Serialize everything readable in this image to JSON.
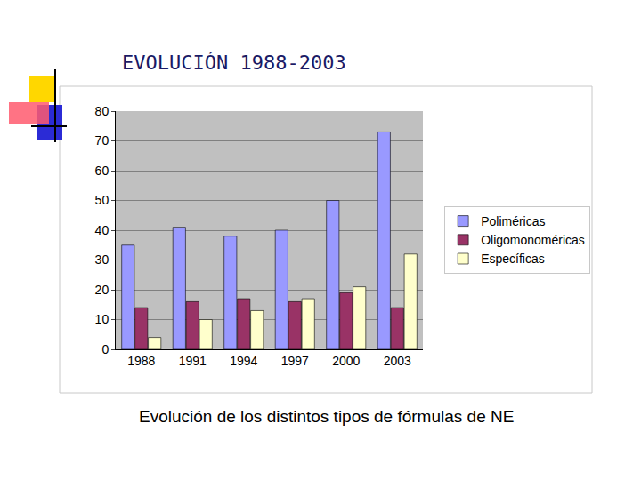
{
  "chart_data": {
    "type": "bar",
    "title": "EVOLUCIÓN 1988-2003",
    "annotations": [
      "Evolución de los distintos tipos de fórmulas de NE"
    ],
    "categories": [
      "1988",
      "1991",
      "1994",
      "1997",
      "2000",
      "2003"
    ],
    "series": [
      {
        "name": "Poliméricas",
        "color": "#9999ff",
        "values": [
          35,
          41,
          38,
          40,
          50,
          73
        ]
      },
      {
        "name": "Oligomonoméricas",
        "color": "#993366",
        "values": [
          14,
          16,
          17,
          16,
          19,
          14
        ]
      },
      {
        "name": "Específicas",
        "color": "#ffffcc",
        "values": [
          4,
          10,
          13,
          17,
          21,
          32
        ]
      }
    ],
    "ylim": [
      0,
      80
    ],
    "yticks": [
      0,
      10,
      20,
      30,
      40,
      50,
      60,
      70,
      80
    ],
    "grid": true,
    "legend": "right"
  }
}
